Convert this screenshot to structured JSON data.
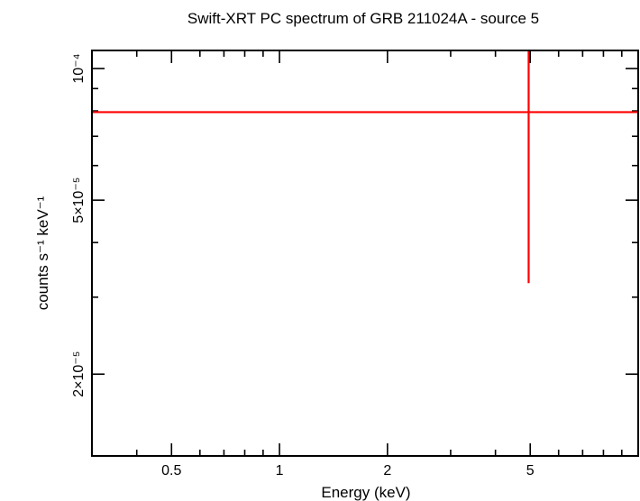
{
  "chart_data": {
    "type": "scatter",
    "title": "Swift-XRT PC spectrum of GRB 211024A - source 5",
    "xlabel": "Energy (keV)",
    "ylabel": "counts s⁻¹ keV⁻¹",
    "x_scale": "log",
    "y_scale": "log",
    "xlim": [
      0.3,
      10
    ],
    "ylim": [
      1.3e-05,
      0.00011
    ],
    "x_ticks": [
      {
        "value": 0.5,
        "label": "0.5"
      },
      {
        "value": 1,
        "label": "1"
      },
      {
        "value": 2,
        "label": "2"
      },
      {
        "value": 5,
        "label": "5"
      }
    ],
    "y_ticks": [
      {
        "value": 0.0001,
        "label": "10⁻⁴"
      },
      {
        "value": 5e-05,
        "label": "5×10⁻⁵"
      },
      {
        "value": 2e-05,
        "label": "2×10⁻⁵"
      }
    ],
    "grid": false,
    "series": [
      {
        "color": "#ff0000",
        "points": [
          {
            "x": 4.95,
            "x_low": 0.3,
            "x_high": 10,
            "y": 7.95e-05,
            "y_low": 3.23e-05,
            "y_high": 0.00011
          }
        ]
      }
    ]
  }
}
